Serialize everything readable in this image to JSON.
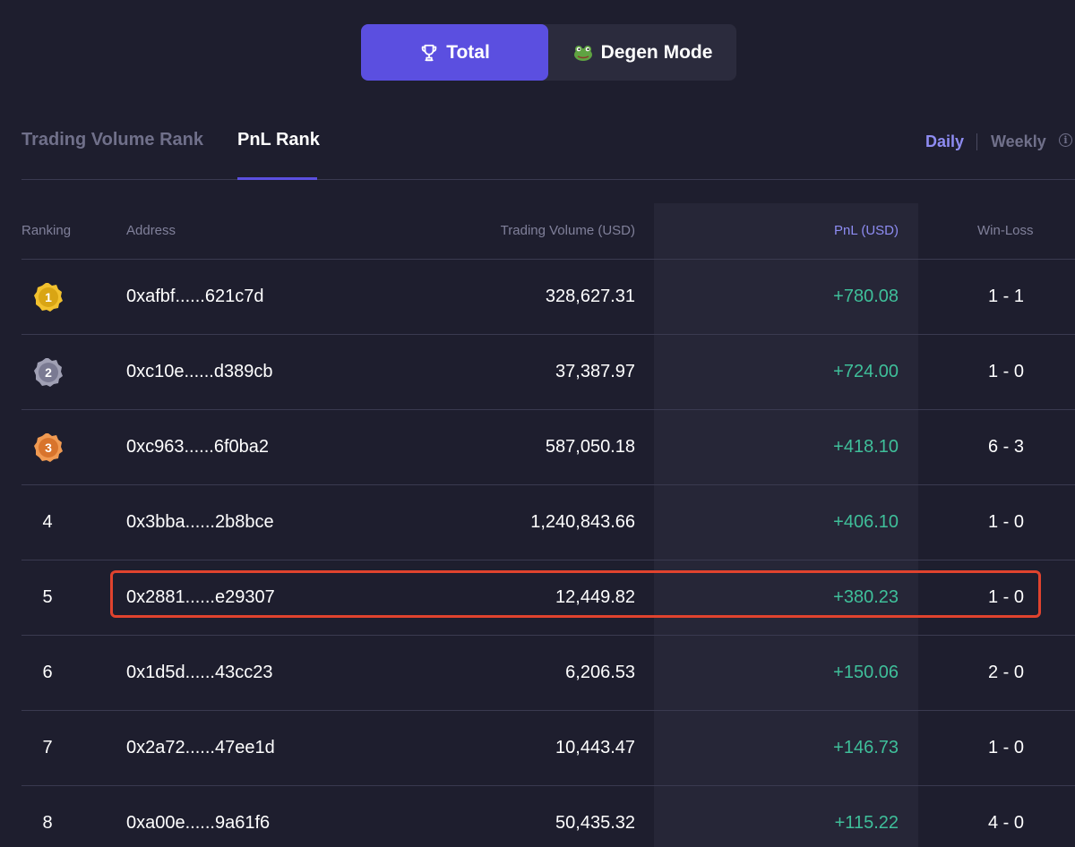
{
  "mode_switch": {
    "total_label": "Total",
    "degen_label": "Degen Mode"
  },
  "tabs": {
    "volume_label": "Trading Volume Rank",
    "pnl_label": "PnL Rank",
    "active": "PnL Rank"
  },
  "period": {
    "daily_label": "Daily",
    "weekly_label": "Weekly",
    "active": "Daily"
  },
  "table": {
    "headers": {
      "ranking": "Ranking",
      "address": "Address",
      "volume": "Trading Volume (USD)",
      "pnl": "PnL (USD)",
      "winloss": "Win-Loss"
    },
    "rows": [
      {
        "rank": "1",
        "address": "0xafbf......621c7d",
        "volume": "328,627.31",
        "pnl": "+780.08",
        "winloss": "1 - 1"
      },
      {
        "rank": "2",
        "address": "0xc10e......d389cb",
        "volume": "37,387.97",
        "pnl": "+724.00",
        "winloss": "1 - 0"
      },
      {
        "rank": "3",
        "address": "0xc963......6f0ba2",
        "volume": "587,050.18",
        "pnl": "+418.10",
        "winloss": "6 - 3"
      },
      {
        "rank": "4",
        "address": "0x3bba......2b8bce",
        "volume": "1,240,843.66",
        "pnl": "+406.10",
        "winloss": "1 - 0"
      },
      {
        "rank": "5",
        "address": "0x2881......e29307",
        "volume": "12,449.82",
        "pnl": "+380.23",
        "winloss": "1 - 0"
      },
      {
        "rank": "6",
        "address": "0x1d5d......43cc23",
        "volume": "6,206.53",
        "pnl": "+150.06",
        "winloss": "2 - 0"
      },
      {
        "rank": "7",
        "address": "0x2a72......47ee1d",
        "volume": "10,443.47",
        "pnl": "+146.73",
        "winloss": "1 - 0"
      },
      {
        "rank": "8",
        "address": "0xa00e......9a61f6",
        "volume": "50,435.32",
        "pnl": "+115.22",
        "winloss": "4 - 0"
      }
    ]
  },
  "colors": {
    "background": "#1e1e2e",
    "accent": "#5b4fe0",
    "pnl_positive": "#3fbf9a",
    "highlight": "#e0432e",
    "gold": "#f2c12e",
    "silver": "#8a8aa0",
    "bronze": "#e0803a"
  },
  "icons": {
    "total": "trophy-icon",
    "degen": "frog-icon",
    "info": "info-icon"
  }
}
